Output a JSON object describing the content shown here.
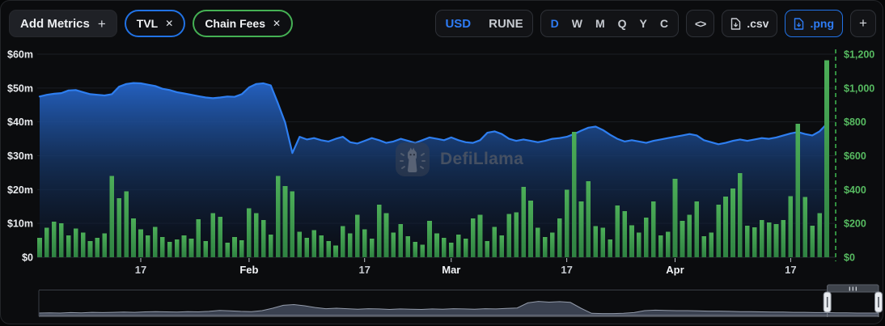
{
  "toolbar": {
    "add_metrics_label": "Add Metrics",
    "plus_glyph": "+",
    "close_glyph": "✕",
    "metrics": [
      {
        "label": "TVL",
        "color": "#2172e5"
      },
      {
        "label": "Chain Fees",
        "color": "#45b154"
      }
    ],
    "currency_options": [
      "USD",
      "RUNE"
    ],
    "currency_selected": "USD",
    "period_options": [
      "D",
      "W",
      "M",
      "Q",
      "Y",
      "C"
    ],
    "period_selected": "D",
    "code_label": "<>",
    "csv_label": ".csv",
    "png_label": ".png",
    "add_chart_label": "+"
  },
  "watermark": {
    "text": "DefiLlama"
  },
  "chart_data": [
    {
      "type": "mixed_area_bar",
      "title": "",
      "grid": true,
      "x": {
        "frequency": "daily",
        "tick_labels": [
          {
            "label": "17",
            "day_index": 14,
            "bold": false
          },
          {
            "label": "Feb",
            "day_index": 29,
            "bold": true
          },
          {
            "label": "17",
            "day_index": 45,
            "bold": false
          },
          {
            "label": "Mar",
            "day_index": 57,
            "bold": true
          },
          {
            "label": "17",
            "day_index": 73,
            "bold": false
          },
          {
            "label": "Apr",
            "day_index": 88,
            "bold": true
          },
          {
            "label": "17",
            "day_index": 104,
            "bold": false
          }
        ]
      },
      "left_axis": {
        "min": 0,
        "max": 60,
        "unit": "USD millions",
        "tick_values": [
          60,
          50,
          40,
          30,
          20,
          10,
          0
        ],
        "tick_labels": [
          "$60m",
          "$50m",
          "$40m",
          "$30m",
          "$20m",
          "$10m",
          "$0"
        ],
        "color": "#e9ebee"
      },
      "right_axis": {
        "min": 0,
        "max": 1200,
        "unit": "USD",
        "tick_values": [
          1200,
          1000,
          800,
          600,
          400,
          200,
          0
        ],
        "tick_labels": [
          "$1,200",
          "$1,000",
          "$800",
          "$600",
          "$400",
          "$200",
          "$0"
        ],
        "color": "#57bb61"
      },
      "end_marker": {
        "type": "dashed_vertical_line",
        "color": "#3fb950"
      },
      "series": [
        {
          "name": "TVL",
          "type": "area",
          "axis": "left",
          "color": "#2e7ef0",
          "values": [
            47.5,
            48.0,
            48.3,
            48.5,
            49.3,
            49.4,
            48.8,
            48.2,
            48.0,
            47.8,
            48.2,
            50.4,
            51.2,
            51.5,
            51.4,
            51.0,
            50.6,
            49.8,
            49.4,
            48.8,
            48.4,
            48.0,
            47.6,
            47.2,
            47.0,
            47.2,
            47.5,
            47.4,
            48.2,
            50.2,
            51.2,
            51.4,
            50.8,
            45.5,
            39.8,
            30.8,
            35.6,
            34.8,
            35.2,
            34.6,
            34.2,
            35.0,
            35.6,
            34.0,
            33.6,
            34.4,
            35.2,
            34.6,
            33.8,
            34.2,
            35.0,
            34.4,
            33.8,
            34.6,
            35.4,
            35.0,
            34.6,
            35.4,
            34.6,
            34.0,
            33.8,
            34.6,
            36.8,
            37.2,
            36.4,
            35.0,
            34.4,
            34.8,
            34.4,
            34.0,
            34.4,
            35.0,
            35.2,
            35.6,
            36.4,
            37.4,
            38.3,
            38.6,
            37.6,
            36.2,
            35.0,
            34.2,
            34.6,
            34.2,
            33.8,
            34.4,
            34.8,
            35.2,
            35.6,
            36.0,
            36.4,
            36.0,
            34.6,
            34.0,
            33.4,
            33.8,
            34.4,
            34.8,
            34.4,
            34.8,
            35.2,
            35.0,
            35.4,
            36.0,
            36.6,
            37.0,
            36.4,
            36.0,
            37.2,
            39.4
          ]
        },
        {
          "name": "Chain Fees",
          "type": "bar",
          "axis": "right",
          "color": "#3f9e4c",
          "values": [
            115,
            175,
            210,
            200,
            130,
            170,
            145,
            95,
            115,
            140,
            480,
            350,
            390,
            230,
            165,
            130,
            180,
            120,
            90,
            105,
            130,
            110,
            225,
            95,
            260,
            240,
            85,
            120,
            100,
            290,
            260,
            220,
            135,
            480,
            420,
            390,
            150,
            115,
            160,
            130,
            95,
            70,
            185,
            140,
            250,
            165,
            110,
            310,
            260,
            145,
            195,
            125,
            90,
            75,
            215,
            140,
            115,
            85,
            135,
            110,
            230,
            250,
            95,
            180,
            130,
            255,
            265,
            415,
            335,
            175,
            120,
            145,
            230,
            400,
            740,
            330,
            450,
            185,
            175,
            105,
            306,
            272,
            190,
            146,
            234,
            330,
            130,
            150,
            464,
            215,
            250,
            330,
            125,
            146,
            310,
            359,
            407,
            497,
            186,
            177,
            220,
            205,
            195,
            220,
            360,
            790,
            355,
            186,
            260,
            1165
          ]
        }
      ]
    },
    {
      "type": "area",
      "role": "overview-scrubber",
      "color": "#3a4150",
      "values_normalized": [
        0.1,
        0.11,
        0.1,
        0.12,
        0.11,
        0.13,
        0.12,
        0.13,
        0.14,
        0.13,
        0.15,
        0.16,
        0.15,
        0.14,
        0.16,
        0.15,
        0.17,
        0.21,
        0.19,
        0.17,
        0.16,
        0.2,
        0.3,
        0.42,
        0.45,
        0.4,
        0.33,
        0.28,
        0.3,
        0.28,
        0.26,
        0.28,
        0.27,
        0.25,
        0.27,
        0.26,
        0.25,
        0.27,
        0.26,
        0.28,
        0.27,
        0.26,
        0.28,
        0.27,
        0.29,
        0.31,
        0.52,
        0.58,
        0.55,
        0.57,
        0.54,
        0.3,
        0.09,
        0.08,
        0.08,
        0.09,
        0.12,
        0.2,
        0.22,
        0.21,
        0.2,
        0.2,
        0.19,
        0.18,
        0.18,
        0.17,
        0.16,
        0.16,
        0.15,
        0.14,
        0.14,
        0.13,
        0.13,
        0.12,
        0.12,
        0.11,
        0.11,
        0.1,
        0.1,
        0.1
      ],
      "selection": {
        "from_fraction": 0.939,
        "to_fraction": 1.0
      }
    }
  ]
}
